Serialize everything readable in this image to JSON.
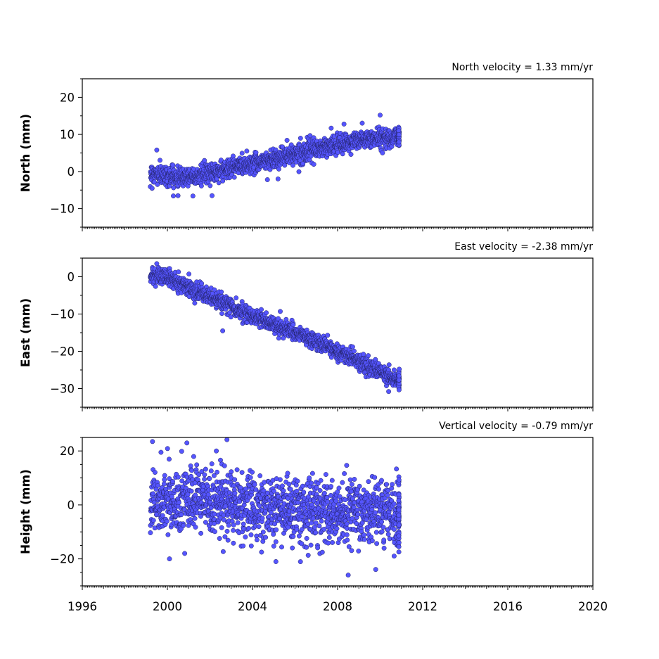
{
  "chart_data": [
    {
      "type": "scatter",
      "title": "North velocity = 1.33 mm/yr",
      "xlabel": "",
      "ylabel": "North (mm)",
      "xlim": [
        1996,
        2020
      ],
      "ylim": [
        -15,
        25
      ],
      "yticks": [
        -10,
        0,
        10,
        20
      ],
      "xticks": [],
      "color": "#5555ff",
      "edge_color": "#222266",
      "series": [
        {
          "trend": {
            "x": [
              1999.2,
              2000.5,
              2001.5,
              2003.0,
              2005.0,
              2007.0,
              2009.0,
              2010.9
            ],
            "y": [
              -0.5,
              -1.5,
              -1.0,
              1.0,
              3.5,
              6.0,
              8.5,
              9.5
            ]
          },
          "scatter_std": 1.3,
          "outliers": [
            {
              "x": 1999.5,
              "y": 5.8
            },
            {
              "x": 2000.5,
              "y": -6.5
            },
            {
              "x": 2002.1,
              "y": -6.5
            },
            {
              "x": 2007.7,
              "y": 11.7
            },
            {
              "x": 2008.3,
              "y": 12.8
            },
            {
              "x": 2010.0,
              "y": 15.2
            },
            {
              "x": 2004.7,
              "y": -2.2
            },
            {
              "x": 2005.2,
              "y": -2.0
            }
          ]
        }
      ]
    },
    {
      "type": "scatter",
      "title": "East velocity = -2.38 mm/yr",
      "xlabel": "",
      "ylabel": "East (mm)",
      "xlim": [
        1996,
        2020
      ],
      "ylim": [
        -35,
        5
      ],
      "yticks": [
        -30,
        -20,
        -10,
        0
      ],
      "xticks": [],
      "color": "#5555ff",
      "edge_color": "#222266",
      "series": [
        {
          "trend": {
            "x": [
              1999.2,
              2000.0,
              2002.0,
              2004.0,
              2006.0,
              2008.0,
              2010.0,
              2010.9
            ],
            "y": [
              0.5,
              0.0,
              -5.5,
              -10.5,
              -15.0,
              -20.0,
              -25.5,
              -28.0
            ]
          },
          "scatter_std": 1.1,
          "outliers": [
            {
              "x": 1999.5,
              "y": 3.5
            },
            {
              "x": 2002.6,
              "y": -14.5
            },
            {
              "x": 2010.4,
              "y": -30.8
            },
            {
              "x": 2010.9,
              "y": -24.8
            }
          ]
        }
      ]
    },
    {
      "type": "scatter",
      "title": "Vertical velocity = -0.79 mm/yr",
      "xlabel": "",
      "ylabel": "Height (mm)",
      "xlim": [
        1996,
        2020
      ],
      "ylim": [
        -30,
        25
      ],
      "yticks": [
        -20,
        0,
        20
      ],
      "xticks": [
        1996,
        2000,
        2004,
        2008,
        2012,
        2016,
        2020
      ],
      "color": "#5555ff",
      "edge_color": "#222266",
      "series": [
        {
          "trend": {
            "x": [
              1999.2,
              2002.5,
              2004.5,
              2007.0,
              2010.9
            ],
            "y": [
              1.5,
              1.0,
              -1.0,
              -3.0,
              -3.5
            ]
          },
          "scatter_std": 6.0,
          "outliers": [
            {
              "x": 1999.3,
              "y": 23.5
            },
            {
              "x": 2002.8,
              "y": 24.2
            },
            {
              "x": 2002.3,
              "y": 20.0
            },
            {
              "x": 1999.7,
              "y": 19.5
            },
            {
              "x": 2008.5,
              "y": -26.0
            },
            {
              "x": 2005.1,
              "y": -21.0
            },
            {
              "x": 2000.1,
              "y": -20.0
            }
          ]
        }
      ]
    }
  ]
}
